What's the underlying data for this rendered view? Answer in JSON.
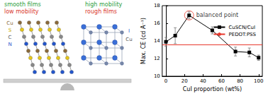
{
  "illustration": {
    "left": {
      "labels": [
        {
          "text": "smooth films",
          "color": "#2e9e3e"
        },
        {
          "text": "low mobility",
          "color": "#d9362b"
        }
      ],
      "atoms": [
        {
          "text": "Cu",
          "color": "#8a6a3a"
        },
        {
          "text": "S",
          "color": "#c9a800"
        },
        {
          "text": "C",
          "color": "#555555"
        },
        {
          "text": "N",
          "color": "#2255cc"
        }
      ]
    },
    "right": {
      "labels": [
        {
          "text": "high mobility",
          "color": "#2e9e3e"
        },
        {
          "text": "rough films",
          "color": "#d9362b"
        }
      ],
      "atoms": [
        {
          "text": "I",
          "color": "#2255cc"
        },
        {
          "text": "Cu",
          "color": "#555555"
        }
      ]
    }
  },
  "chart_data": {
    "type": "line",
    "x_label": "CuI proportion (wt%)",
    "y_label": "Max. CE (cd A⁻¹)",
    "xlim": [
      -4,
      104
    ],
    "xticks": [
      0,
      20,
      40,
      60,
      80,
      100
    ],
    "ylim": [
      10,
      18
    ],
    "yticks": [
      10,
      12,
      14,
      16,
      18
    ],
    "legend": "upper right",
    "series": [
      {
        "name": "CuSCN/CuI",
        "color": "#000000",
        "marker": "square",
        "x": [
          0,
          10,
          25,
          50,
          75,
          90,
          100
        ],
        "values": [
          13.9,
          14.6,
          16.9,
          15.2,
          12.8,
          12.7,
          12.1
        ],
        "errors": [
          0.5,
          0.9,
          0.4,
          0.4,
          0.5,
          0.5,
          0.3
        ]
      },
      {
        "name": "PEDOT:PSS",
        "color": "#e8392e",
        "type": "hline",
        "values": [
          13.6
        ]
      }
    ],
    "annotations": [
      {
        "text": "balanced point",
        "x": 25,
        "y": 16.9,
        "color": "#e8392e",
        "marker": "circle"
      }
    ]
  }
}
